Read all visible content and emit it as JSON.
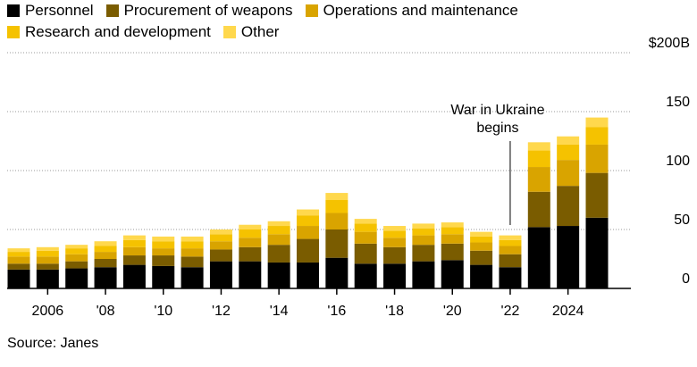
{
  "legend": {
    "items": [
      {
        "label": "Personnel",
        "color": "#000000"
      },
      {
        "label": "Procurement of weapons",
        "color": "#7a5c00"
      },
      {
        "label": "Operations and maintenance",
        "color": "#d9a400"
      },
      {
        "label": "Research and development",
        "color": "#f5c200"
      },
      {
        "label": "Other",
        "color": "#ffd84d"
      }
    ]
  },
  "source": "Source: Janes",
  "annotation": {
    "line1": "War in Ukraine",
    "line2": "begins"
  },
  "chart_data": {
    "type": "bar",
    "stacked": true,
    "x": [
      2005,
      2006,
      2007,
      2008,
      2009,
      2010,
      2011,
      2012,
      2013,
      2014,
      2015,
      2016,
      2017,
      2018,
      2019,
      2020,
      2021,
      2022,
      2023,
      2024,
      2025
    ],
    "x_tick_values": [
      2006,
      2008,
      2010,
      2012,
      2014,
      2016,
      2018,
      2020,
      2022,
      2024
    ],
    "x_tick_labels": [
      "2006",
      "'08",
      "'10",
      "'12",
      "'14",
      "'16",
      "'18",
      "'20",
      "'22",
      "2024"
    ],
    "y_tick_values": [
      0,
      50,
      100,
      150,
      200
    ],
    "y_tick_labels": [
      "0",
      "50",
      "100",
      "150",
      "$200B"
    ],
    "ylim": [
      0,
      200
    ],
    "series": [
      {
        "name": "Personnel",
        "color": "#000000",
        "values": [
          16,
          16,
          17,
          18,
          20,
          19,
          18,
          23,
          23,
          22,
          22,
          26,
          21,
          21,
          23,
          24,
          20,
          18,
          52,
          53,
          60
        ]
      },
      {
        "name": "Procurement of weapons",
        "color": "#7a5c00",
        "values": [
          5,
          5,
          6,
          7,
          8,
          9,
          9,
          10,
          12,
          15,
          20,
          24,
          17,
          14,
          14,
          14,
          12,
          11,
          30,
          34,
          38
        ]
      },
      {
        "name": "Operations and maintenance",
        "color": "#d9a400",
        "values": [
          6,
          6,
          6,
          6,
          7,
          6,
          7,
          7,
          8,
          9,
          11,
          14,
          10,
          8,
          8,
          8,
          7,
          7,
          21,
          22,
          24
        ]
      },
      {
        "name": "Research and development",
        "color": "#f5c200",
        "values": [
          4,
          5,
          5,
          5,
          6,
          6,
          6,
          6,
          7,
          7,
          9,
          11,
          7,
          6,
          6,
          6,
          5,
          5,
          14,
          13,
          15
        ]
      },
      {
        "name": "Other",
        "color": "#ffd84d",
        "values": [
          3,
          3,
          3,
          4,
          4,
          4,
          4,
          4,
          4,
          4,
          5,
          6,
          4,
          4,
          4,
          4,
          4,
          4,
          7,
          7,
          8
        ]
      }
    ],
    "annotation_year": 2022,
    "grid": true
  }
}
